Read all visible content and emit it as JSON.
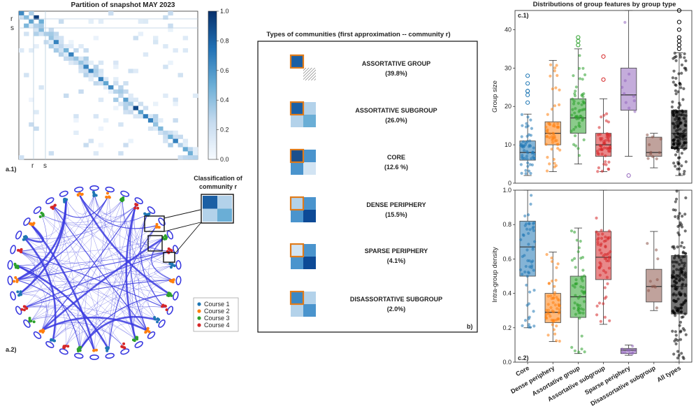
{
  "panel_a1": {
    "title": "Partition of snapshot MAY 2023",
    "label": "a.1)",
    "row_markers": [
      "r",
      "s"
    ],
    "col_markers": [
      "r",
      "s"
    ],
    "colorbar_ticks": [
      "1.0",
      "0.8",
      "0.6",
      "0.4",
      "0.2",
      "0.0"
    ]
  },
  "panel_a2": {
    "label": "a.2)",
    "inset_title_line1": "Classification  of",
    "inset_title_line2": "community r",
    "legend": [
      {
        "name": "Course 1",
        "color": "#1f77b4"
      },
      {
        "name": "Course 2",
        "color": "#ff7f0e"
      },
      {
        "name": "Course 3",
        "color": "#2ca02c"
      },
      {
        "name": "Course 4",
        "color": "#d62728"
      }
    ]
  },
  "panel_b": {
    "title": "Types of communities (first approximation -- community r)",
    "label": "b)",
    "types": [
      {
        "name": "ASSORTATIVE GROUP",
        "pct": "(39.8%)"
      },
      {
        "name": "ASSORTATIVE SUBGROUP",
        "pct": "(26.0%)"
      },
      {
        "name": "CORE",
        "pct": "(12.6 %)"
      },
      {
        "name": "DENSE PERIPHERY",
        "pct": "(15.5%)"
      },
      {
        "name": "SPARSE PERIPHERY",
        "pct": "(4.1%)"
      },
      {
        "name": "DISASSORTATIVE SUBGROUP",
        "pct": "(2.0%)"
      }
    ]
  },
  "chart_data": [
    {
      "type": "box",
      "title": "Distributions of group features by group type",
      "panel_label": "c.1)",
      "ylabel": "Group size",
      "ylim": [
        0,
        45
      ],
      "yticks": [
        "0",
        "10",
        "20",
        "30",
        "40"
      ],
      "categories": [
        "Core",
        "Dense periphery",
        "Assortative group",
        "Assortative subgroup",
        "Sparse periphery",
        "Disassortative subgroup",
        "All types"
      ],
      "colors": [
        "#1f77b4",
        "#ff7f0e",
        "#2ca02c",
        "#d62728",
        "#9467bd",
        "#8c564b",
        "#000000"
      ],
      "boxes": [
        {
          "whislo": 2,
          "q1": 6,
          "med": 8,
          "q3": 11,
          "whishi": 18,
          "fliers": [
            21,
            23,
            24,
            24,
            26,
            28
          ]
        },
        {
          "whislo": 3,
          "q1": 10,
          "med": 13,
          "q3": 16,
          "whishi": 32,
          "fliers": []
        },
        {
          "whislo": 5,
          "q1": 13,
          "med": 17,
          "q3": 22,
          "whishi": 35,
          "fliers": [
            36,
            37,
            38
          ]
        },
        {
          "whislo": 3,
          "q1": 7,
          "med": 10,
          "q3": 13,
          "whishi": 22,
          "fliers": [
            27,
            33
          ]
        },
        {
          "whislo": 7,
          "q1": 19,
          "med": 23,
          "q3": 30,
          "whishi": 45,
          "fliers": [
            2
          ]
        },
        {
          "whislo": 4,
          "q1": 7,
          "med": 8,
          "q3": 12,
          "whishi": 13,
          "fliers": []
        },
        {
          "whislo": 2,
          "q1": 9,
          "med": 13,
          "q3": 19,
          "whishi": 34,
          "fliers": [
            35,
            36,
            37,
            38,
            40,
            42,
            45
          ]
        }
      ]
    },
    {
      "type": "box",
      "panel_label": "c.2)",
      "ylabel": "Intra-group density",
      "ylim": [
        0.0,
        1.0
      ],
      "yticks": [
        "0.0",
        "0.2",
        "0.4",
        "0.6",
        "0.8",
        "1.0"
      ],
      "categories": [
        "Core",
        "Dense periphery",
        "Assortative group",
        "Assortative subgroup",
        "Sparse periphery",
        "Disassortative subgroup",
        "All types"
      ],
      "colors": [
        "#1f77b4",
        "#ff7f0e",
        "#2ca02c",
        "#d62728",
        "#9467bd",
        "#8c564b",
        "#000000"
      ],
      "boxes": [
        {
          "whislo": 0.2,
          "q1": 0.5,
          "med": 0.67,
          "q3": 0.82,
          "whishi": 1.0,
          "fliers": []
        },
        {
          "whislo": 0.12,
          "q1": 0.23,
          "med": 0.29,
          "q3": 0.4,
          "whishi": 0.64,
          "fliers": []
        },
        {
          "whislo": 0.05,
          "q1": 0.26,
          "med": 0.38,
          "q3": 0.5,
          "whishi": 0.78,
          "fliers": []
        },
        {
          "whislo": 0.22,
          "q1": 0.48,
          "med": 0.61,
          "q3": 0.76,
          "whishi": 1.0,
          "fliers": []
        },
        {
          "whislo": 0.04,
          "q1": 0.05,
          "med": 0.07,
          "q3": 0.08,
          "whishi": 0.1,
          "fliers": []
        },
        {
          "whislo": 0.3,
          "q1": 0.35,
          "med": 0.44,
          "q3": 0.54,
          "whishi": 0.76,
          "fliers": []
        },
        {
          "whislo": 0.0,
          "q1": 0.28,
          "med": 0.44,
          "q3": 0.62,
          "whishi": 1.0,
          "fliers": []
        }
      ]
    }
  ]
}
